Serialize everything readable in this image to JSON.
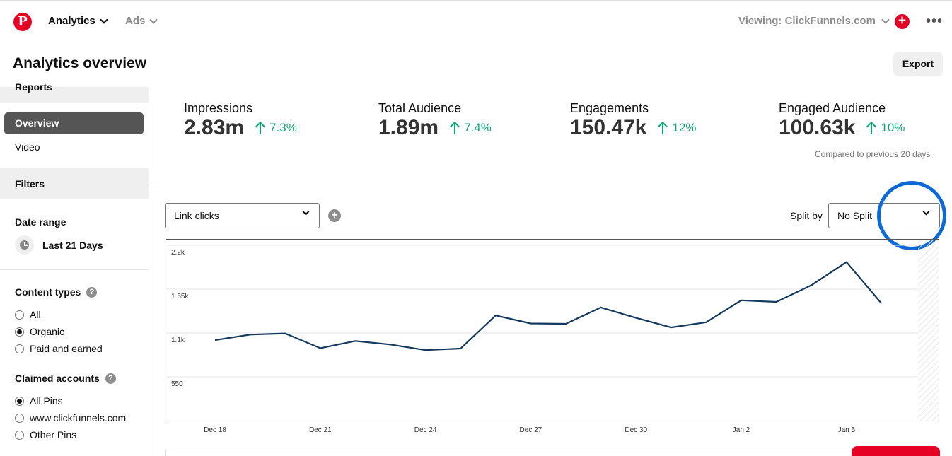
{
  "nav": {
    "logo": "P",
    "analytics_label": "Analytics",
    "ads_label": "Ads",
    "viewing_label": "Viewing: ClickFunnels.com",
    "create_glyph": "+",
    "more_glyph": "•••"
  },
  "header": {
    "title": "Analytics overview",
    "export_label": "Export"
  },
  "sidebar": {
    "reports_label": "Reports",
    "overview_label": "Overview",
    "video_label": "Video",
    "filters_label": "Filters",
    "date_range_label": "Date range",
    "date_range_value": "Last 21 Days",
    "content_types_label": "Content types",
    "content_types": [
      "All",
      "Organic",
      "Paid and earned"
    ],
    "content_types_selected": 1,
    "claimed_accounts_label": "Claimed accounts",
    "claimed_accounts": [
      "All Pins",
      "www.clickfunnels.com",
      "Other Pins"
    ],
    "claimed_accounts_selected": 0,
    "help_glyph": "?"
  },
  "metrics": [
    {
      "label": "Impressions",
      "value": "2.83m",
      "change": "7.3%"
    },
    {
      "label": "Total Audience",
      "value": "1.89m",
      "change": "7.4%"
    },
    {
      "label": "Engagements",
      "value": "150.47k",
      "change": "12%"
    },
    {
      "label": "Engaged Audience",
      "value": "100.63k",
      "change": "10%"
    }
  ],
  "compared_text": "Compared to previous 20 days",
  "chart_controls": {
    "metric_select": "Link clicks",
    "add_glyph": "+",
    "split_by_label": "Split by",
    "split_select": "No Split"
  },
  "colors": {
    "brand": "#e60023",
    "positive": "#0fa573",
    "line": "#133a5e",
    "highlight": "#0c69d6"
  },
  "chart_data": {
    "type": "line",
    "title": "",
    "xlabel": "",
    "ylabel": "Link clicks",
    "ylim": [
      0,
      2200
    ],
    "y_ticks": [
      {
        "value": 550,
        "label": "550"
      },
      {
        "value": 1100,
        "label": "1.1k"
      },
      {
        "value": 1650,
        "label": "1.65k"
      },
      {
        "value": 2200,
        "label": "2.2k"
      }
    ],
    "x_tick_labels": [
      "Dec 18",
      "Dec 21",
      "Dec 24",
      "Dec 27",
      "Dec 30",
      "Jan 2",
      "Jan 5"
    ],
    "categories": [
      "Dec 18",
      "Dec 19",
      "Dec 20",
      "Dec 21",
      "Dec 22",
      "Dec 23",
      "Dec 24",
      "Dec 25",
      "Dec 26",
      "Dec 27",
      "Dec 28",
      "Dec 29",
      "Dec 30",
      "Dec 31",
      "Jan 1",
      "Jan 2",
      "Jan 3",
      "Jan 4",
      "Jan 5",
      "Jan 6"
    ],
    "series": [
      {
        "name": "Link clicks",
        "values": [
          1010,
          1080,
          1095,
          910,
          1000,
          955,
          885,
          905,
          1320,
          1220,
          1215,
          1420,
          1290,
          1170,
          1235,
          1510,
          1490,
          1700,
          1990,
          1470
        ]
      }
    ]
  }
}
